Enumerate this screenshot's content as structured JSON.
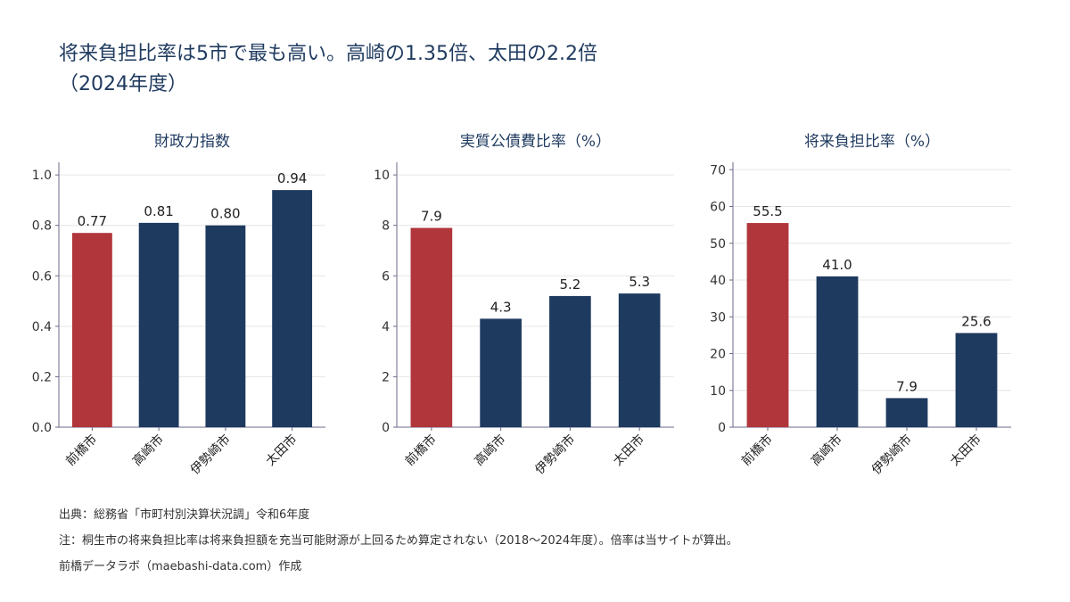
{
  "title": {
    "line1": "将来負担比率は5市で最も高い。高崎の1.35倍、太田の2.2倍",
    "line2": "（2024年度）"
  },
  "colors": {
    "highlight": "#b0363b",
    "default": "#1f3a5f",
    "grid": "#e6e6e6",
    "axis": "#6a6a8a"
  },
  "chart_data": [
    {
      "type": "bar",
      "title": "財政力指数",
      "categories": [
        "前橋市",
        "高崎市",
        "伊勢崎市",
        "太田市"
      ],
      "values": [
        0.77,
        0.81,
        0.8,
        0.94
      ],
      "data_labels": [
        "0.77",
        "0.81",
        "0.80",
        "0.94"
      ],
      "highlight": [
        "前橋市"
      ],
      "ylim": [
        0,
        1.05
      ],
      "yticks": [
        0.0,
        0.2,
        0.4,
        0.6,
        0.8,
        1.0
      ],
      "ytick_labels": [
        "0.0",
        "0.2",
        "0.4",
        "0.6",
        "0.8",
        "1.0"
      ],
      "grid": true
    },
    {
      "type": "bar",
      "title": "実質公債費比率（%）",
      "categories": [
        "前橋市",
        "高崎市",
        "伊勢崎市",
        "太田市"
      ],
      "values": [
        7.9,
        4.3,
        5.2,
        5.3
      ],
      "data_labels": [
        "7.9",
        "4.3",
        "5.2",
        "5.3"
      ],
      "highlight": [
        "前橋市"
      ],
      "ylim": [
        0,
        10.5
      ],
      "yticks": [
        0,
        2,
        4,
        6,
        8,
        10
      ],
      "ytick_labels": [
        "0",
        "2",
        "4",
        "6",
        "8",
        "10"
      ],
      "grid": true
    },
    {
      "type": "bar",
      "title": "将来負担比率（%）",
      "categories": [
        "前橋市",
        "高崎市",
        "伊勢崎市",
        "太田市"
      ],
      "values": [
        55.5,
        41.0,
        7.9,
        25.6
      ],
      "data_labels": [
        "55.5",
        "41.0",
        "7.9",
        "25.6"
      ],
      "highlight": [
        "前橋市"
      ],
      "ylim": [
        0,
        72
      ],
      "yticks": [
        0,
        10,
        20,
        30,
        40,
        50,
        60,
        70
      ],
      "ytick_labels": [
        "0",
        "10",
        "20",
        "30",
        "40",
        "50",
        "60",
        "70"
      ],
      "grid": true
    }
  ],
  "notes": {
    "source": "出典：総務省「市町村別決算状況調」令和6年度",
    "note": "注：桐生市の将来負担比率は将来負担額を充当可能財源が上回るため算定されない（2018〜2024年度）。倍率は当サイトが算出。",
    "credit": "前橋データラボ（maebashi-data.com）作成"
  }
}
